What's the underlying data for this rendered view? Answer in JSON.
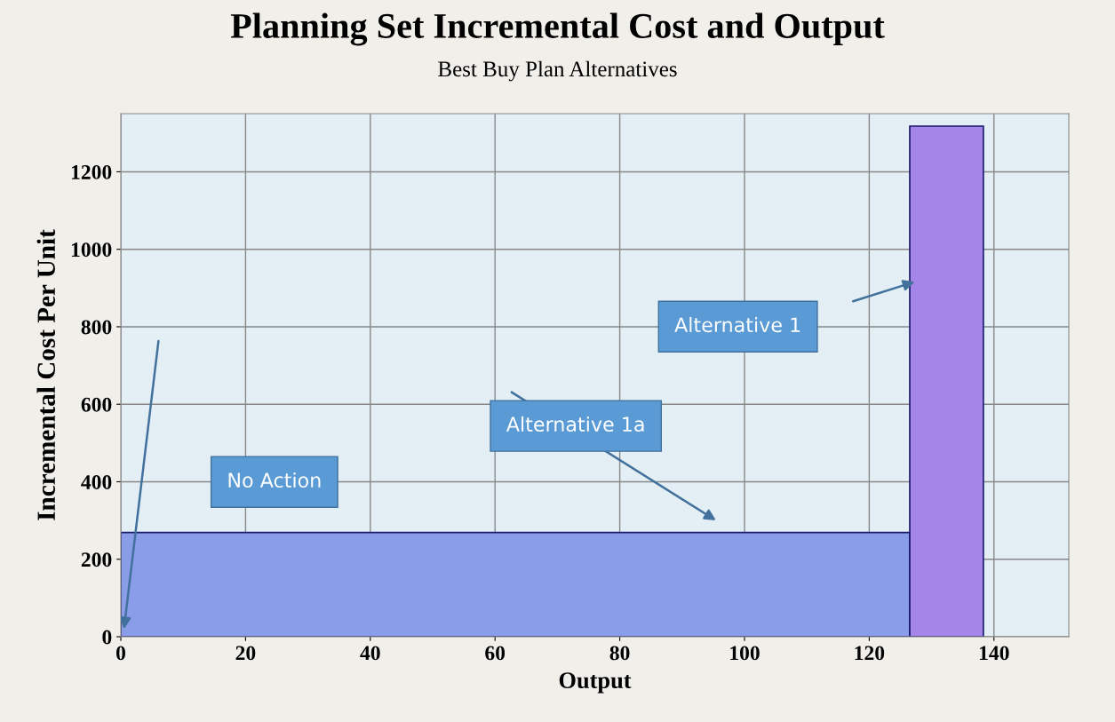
{
  "chart_data": {
    "type": "histogram",
    "title": "Planning Set Incremental Cost and Output",
    "subtitle": "Best Buy Plan Alternatives",
    "xlabel": "Output",
    "ylabel": "Incremental Cost Per Unit",
    "bins": [
      0,
      126.5,
      138.3
    ],
    "values": [
      269,
      1318
    ],
    "colors": [
      "#8a9de9",
      "#a585e8"
    ],
    "xlim": [
      0,
      152
    ],
    "ylim": [
      0,
      1350
    ],
    "xticks": [
      0,
      20,
      40,
      60,
      80,
      100,
      120,
      140
    ],
    "yticks": [
      0,
      200,
      400,
      600,
      800,
      1000,
      1200
    ],
    "grid": true,
    "annotations": [
      "No Action",
      "Alternative 1a",
      "Alternative 1"
    ]
  }
}
